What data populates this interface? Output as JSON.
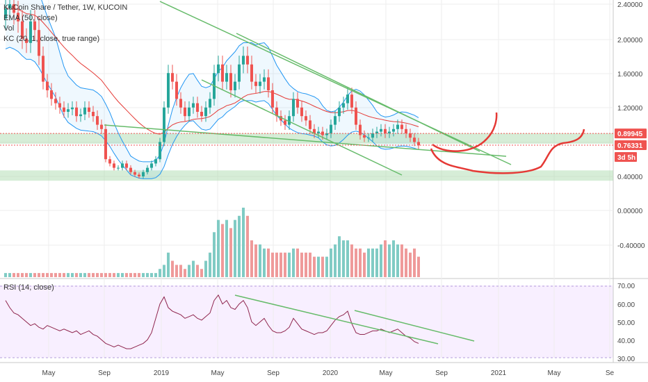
{
  "chart_data": [
    {
      "type": "candlestick",
      "title": "KuCoin Share / Tether, 1W, KUCOIN",
      "indicators": [
        "EMA (50, close)",
        "Vol",
        "KC (20, 1, close, true range)"
      ],
      "price_axis_ticks": [
        "2.40000",
        "2.00000",
        "1.60000",
        "1.20000",
        "0.40000",
        "0.00000",
        "-0.40000"
      ],
      "time_axis_ticks": [
        "May",
        "Sep",
        "2019",
        "May",
        "Sep",
        "2020",
        "May",
        "Sep",
        "2021",
        "May",
        "Se"
      ],
      "price_badges": [
        {
          "label": "0.89945",
          "value": 0.89945,
          "color": "#ef5350"
        },
        {
          "label": "0.76331",
          "value": 0.76331,
          "color": "#ef5350"
        },
        {
          "label": "3d 5h",
          "color": "#ef5350"
        }
      ],
      "support_zones": [
        {
          "from": 0.78,
          "to": 0.9
        },
        {
          "from": 0.35,
          "to": 0.47
        }
      ],
      "weekly_close": [
        2.35,
        2.4,
        2.3,
        2.2,
        2.0,
        1.95,
        2.2,
        2.1,
        1.8,
        1.5,
        1.4,
        1.3,
        1.25,
        1.2,
        1.15,
        1.18,
        1.2,
        1.1,
        1.12,
        1.2,
        1.15,
        1.1,
        1.0,
        0.95,
        0.6,
        0.55,
        0.5,
        0.5,
        0.55,
        0.5,
        0.45,
        0.42,
        0.4,
        0.45,
        0.5,
        0.55,
        0.6,
        0.8,
        1.2,
        1.6,
        1.5,
        1.3,
        1.2,
        1.1,
        1.2,
        1.25,
        1.15,
        1.1,
        1.2,
        1.3,
        1.6,
        1.7,
        1.5,
        1.6,
        1.4,
        1.5,
        1.7,
        1.8,
        1.7,
        1.5,
        1.45,
        1.5,
        1.55,
        1.4,
        1.2,
        1.1,
        1.05,
        1.0,
        1.1,
        1.3,
        1.2,
        1.1,
        1.05,
        0.95,
        0.9,
        0.92,
        0.88,
        0.9,
        1.0,
        1.1,
        1.2,
        1.25,
        1.35,
        1.2,
        1.0,
        0.88,
        0.85,
        0.85,
        0.9,
        0.92,
        0.95,
        0.9,
        0.92,
        0.95,
        1.0,
        0.95,
        0.9,
        0.85,
        0.8,
        0.76
      ],
      "volume": [
        1,
        1,
        1,
        1,
        1,
        1,
        1,
        1,
        1,
        1,
        1,
        1,
        1,
        1,
        1,
        1,
        1,
        1,
        1,
        1,
        1,
        1,
        1,
        1,
        1,
        1,
        1,
        1,
        1,
        1,
        1,
        1,
        1,
        1,
        1,
        1,
        1,
        2,
        3,
        6,
        4,
        3,
        3,
        2,
        3,
        4,
        3,
        2,
        4,
        6,
        11,
        14,
        13,
        14,
        12,
        14,
        15,
        17,
        15,
        9,
        8,
        8,
        7,
        7,
        6,
        6,
        6,
        6,
        6,
        7,
        7,
        6,
        6,
        6,
        5,
        5,
        5,
        5,
        7,
        8,
        10,
        9,
        9,
        8,
        7,
        7,
        6,
        7,
        7,
        7,
        8,
        9,
        8,
        9,
        8,
        8,
        7,
        6,
        7,
        5
      ]
    },
    {
      "type": "line",
      "title": "RSI (14, close)",
      "axis_ticks": [
        "70.00",
        "60.00",
        "50.00",
        "40.00",
        "30.00"
      ],
      "ylim": [
        30,
        70
      ],
      "values": [
        62,
        58,
        55,
        54,
        52,
        50,
        48,
        49,
        47,
        46,
        48,
        47,
        46,
        45,
        46,
        45,
        44,
        45,
        43,
        44,
        45,
        43,
        42,
        40,
        38,
        37,
        36,
        37,
        36,
        35,
        35,
        36,
        37,
        38,
        40,
        44,
        52,
        60,
        64,
        58,
        56,
        55,
        54,
        52,
        53,
        54,
        52,
        51,
        53,
        55,
        62,
        65,
        60,
        62,
        58,
        57,
        60,
        62,
        58,
        50,
        48,
        50,
        52,
        48,
        45,
        44,
        44,
        45,
        47,
        52,
        49,
        46,
        45,
        44,
        43,
        44,
        44,
        45,
        48,
        51,
        53,
        54,
        56,
        49,
        44,
        43,
        43,
        44,
        45,
        45,
        46,
        45,
        44,
        45,
        46,
        44,
        42,
        41,
        39,
        38
      ]
    }
  ]
}
